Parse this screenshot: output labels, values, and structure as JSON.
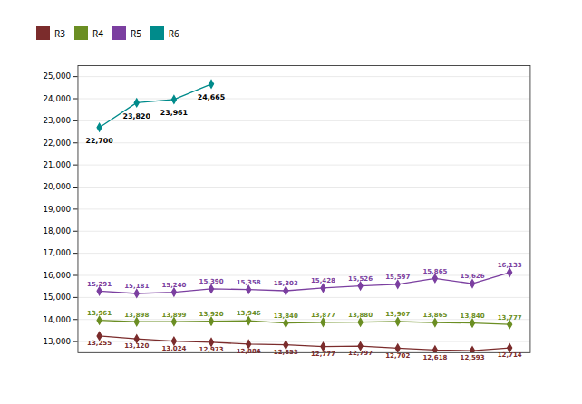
{
  "chart_data": {
    "type": "line",
    "categories": [
      null,
      null,
      null,
      null,
      null,
      null,
      null,
      null,
      null,
      null,
      null,
      null
    ],
    "series": [
      {
        "name": "R3",
        "color": "#7B2C2C",
        "marker": "diamond",
        "values": [
          13255,
          13120,
          13024,
          12973,
          12884,
          12853,
          12777,
          12797,
          12702,
          12618,
          12593,
          12714
        ],
        "value_labels": [
          "13,255",
          "13,120",
          "13,024",
          "12,973",
          "12,884",
          "12,853",
          "12,777",
          "12,797",
          "12,702",
          "12,618",
          "12,593",
          "12,714"
        ]
      },
      {
        "name": "R4",
        "color": "#6B8E23",
        "marker": "diamond",
        "values": [
          13961,
          13898,
          13899,
          13920,
          13946,
          13840,
          13877,
          13880,
          13907,
          13865,
          13840,
          13777
        ],
        "value_labels": [
          "13,961",
          "13,898",
          "13,899",
          "13,920",
          "13,946",
          "13,840",
          "13,877",
          "13,880",
          "13,907",
          "13,865",
          "13,840",
          "13,777"
        ]
      },
      {
        "name": "R5",
        "color": "#7B3FA0",
        "marker": "diamond",
        "values": [
          15291,
          15181,
          15240,
          15390,
          15358,
          15303,
          15428,
          15526,
          15597,
          15865,
          15626,
          16133
        ],
        "value_labels": [
          "15,291",
          "15,181",
          "15,240",
          "15,390",
          "15,358",
          "15,303",
          "15,428",
          "15,526",
          "15,597",
          "15,865",
          "15,626",
          "16,133"
        ]
      },
      {
        "name": "R6",
        "color": "#008B8B",
        "marker": "diamond",
        "values": [
          22700,
          23820,
          23961,
          24665,
          null,
          null,
          null,
          null,
          null,
          null,
          null,
          null
        ],
        "value_labels": [
          "22,700",
          "23,820",
          "23,961",
          "24,665",
          null,
          null,
          null,
          null,
          null,
          null,
          null,
          null
        ]
      }
    ],
    "ylim": [
      12500,
      25500
    ],
    "yticks": [
      {
        "value": 13000,
        "label": "13,000"
      },
      {
        "value": 14000,
        "label": "14,000"
      },
      {
        "value": 15000,
        "label": "15,000"
      },
      {
        "value": 16000,
        "label": "16,000"
      },
      {
        "value": 17000,
        "label": "17,000"
      },
      {
        "value": 18000,
        "label": "18,000"
      },
      {
        "value": 19000,
        "label": "19,000"
      },
      {
        "value": 20000,
        "label": "20,000"
      },
      {
        "value": 21000,
        "label": "21,000"
      },
      {
        "value": 22000,
        "label": "22,000"
      },
      {
        "value": 23000,
        "label": "23,000"
      },
      {
        "value": 24000,
        "label": "24,000"
      },
      {
        "value": 25000,
        "label": "25,000"
      }
    ],
    "grid": true,
    "legend": "top",
    "data_labels": true,
    "tick_labels": "y"
  }
}
